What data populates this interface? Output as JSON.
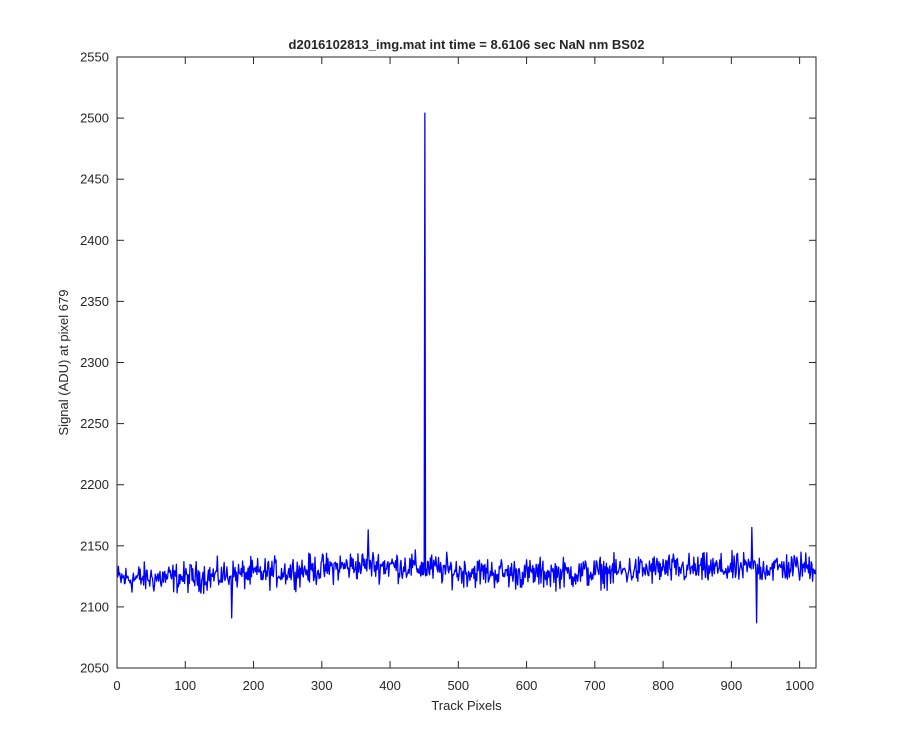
{
  "chart_data": {
    "type": "line",
    "title": "d2016102813_img.mat int time = 8.6106 sec  NaN nm BS02",
    "xlabel": "Track Pixels",
    "ylabel": "Signal (ADU) at pixel 679",
    "xlim": [
      0,
      1024
    ],
    "ylim": [
      2050,
      2550
    ],
    "xticks": [
      0,
      100,
      200,
      300,
      400,
      500,
      600,
      700,
      800,
      900,
      1000
    ],
    "yticks": [
      2050,
      2100,
      2150,
      2200,
      2250,
      2300,
      2350,
      2400,
      2450,
      2500,
      2550
    ],
    "grid": false,
    "series_color": "#0000ff",
    "series": [
      {
        "n_points": 1024,
        "baseline_trend": [
          [
            0,
            2123
          ],
          [
            100,
            2124
          ],
          [
            200,
            2127
          ],
          [
            300,
            2131
          ],
          [
            350,
            2134
          ],
          [
            400,
            2134
          ],
          [
            450,
            2132
          ],
          [
            500,
            2129
          ],
          [
            600,
            2127
          ],
          [
            700,
            2128
          ],
          [
            800,
            2131
          ],
          [
            900,
            2131
          ],
          [
            1024,
            2133
          ]
        ],
        "noise_range": [
          -18,
          18
        ],
        "spikes": [
          {
            "x": 451,
            "y": 2504
          },
          {
            "x": 937,
            "y": 2087
          },
          {
            "x": 168,
            "y": 2091
          },
          {
            "x": 368,
            "y": 2163
          },
          {
            "x": 930,
            "y": 2165
          }
        ]
      }
    ]
  }
}
